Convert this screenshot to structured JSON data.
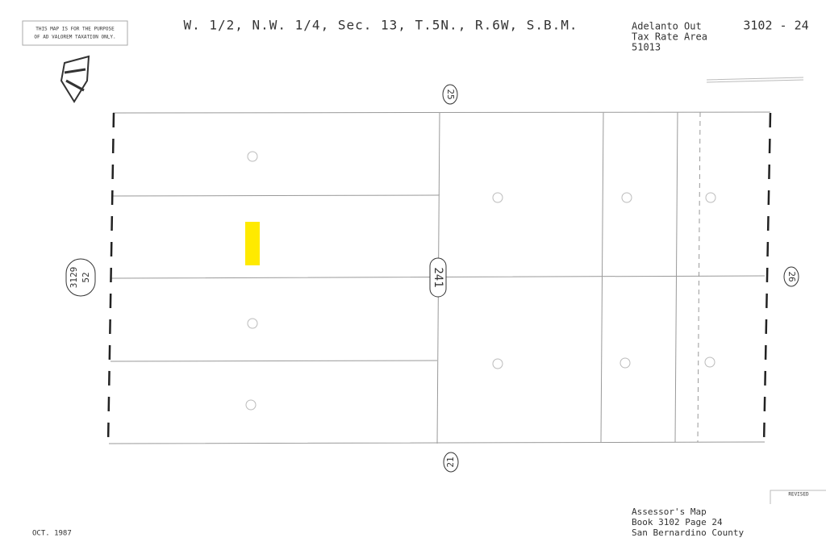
{
  "header": {
    "disclaimer": [
      "THIS MAP IS FOR THE PURPOSE",
      "OF AD VALOREM TAXATION ONLY."
    ],
    "title": "W. 1/2, N.W. 1/4, Sec. 13, T.5N., R.6W, S.B.M.",
    "area": [
      "Adelanto Out",
      "Tax Rate Area",
      "51013"
    ],
    "map_number": "3102 - 24"
  },
  "labels": {
    "north": "25",
    "center": "241",
    "west": [
      "3129",
      "52"
    ],
    "east": "26",
    "south": "21"
  },
  "footer": {
    "date": "OCT. 1987",
    "revised": "REVISED",
    "caption": [
      "Assessor's Map",
      "Book 3102 Page 24",
      "San Bernardino County"
    ]
  }
}
